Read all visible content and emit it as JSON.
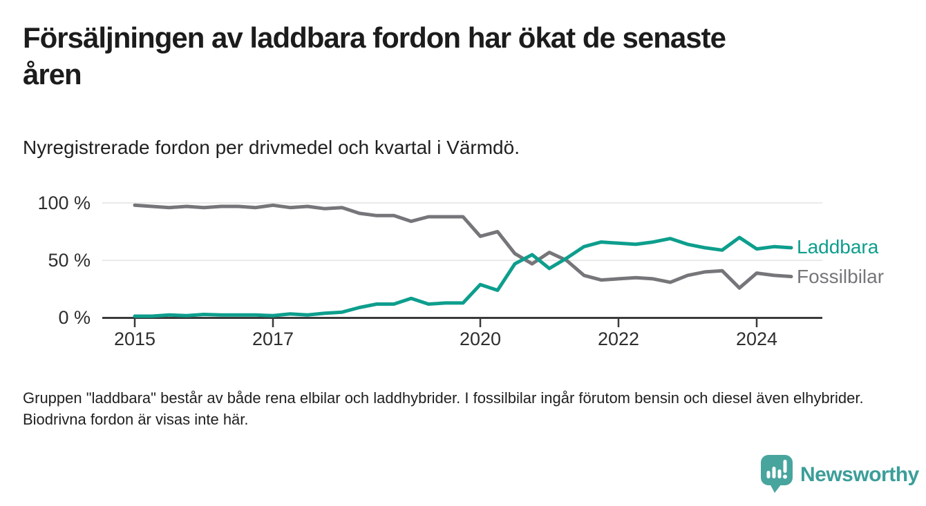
{
  "header": {
    "title_line1": "Försäljningen av laddbara fordon har ökat de senaste",
    "title_line2": "åren",
    "subtitle": "Nyregistrerade fordon per drivmedel och kvartal i Värmdö."
  },
  "chart_data": {
    "type": "line",
    "title": "Försäljningen av laddbara fordon har ökat de senaste åren",
    "subtitle": "Nyregistrerade fordon per drivmedel och kvartal i Värmdö.",
    "unit": "%",
    "ylim": [
      0,
      100
    ],
    "grid": "horizontal",
    "legend_position": "right-of-line-ends",
    "y_tick_labels": [
      "100 %",
      "50 %",
      "0 %"
    ],
    "y_tick_values": [
      100,
      50,
      0
    ],
    "x_tick_labels": [
      "2015",
      "2017",
      "2020",
      "2022",
      "2024"
    ],
    "x": [
      "2015 Q1",
      "2015 Q2",
      "2015 Q3",
      "2015 Q4",
      "2016 Q1",
      "2016 Q2",
      "2016 Q3",
      "2016 Q4",
      "2017 Q1",
      "2017 Q2",
      "2017 Q3",
      "2017 Q4",
      "2018 Q1",
      "2018 Q2",
      "2018 Q3",
      "2018 Q4",
      "2019 Q1",
      "2019 Q2",
      "2019 Q3",
      "2019 Q4",
      "2020 Q1",
      "2020 Q2",
      "2020 Q3",
      "2020 Q4",
      "2021 Q1",
      "2021 Q2",
      "2021 Q3",
      "2021 Q4",
      "2022 Q1",
      "2022 Q2",
      "2022 Q3",
      "2022 Q4",
      "2023 Q1",
      "2023 Q2",
      "2023 Q3",
      "2023 Q4",
      "2024 Q1",
      "2024 Q2",
      "2024 Q3"
    ],
    "series": [
      {
        "name": "Fossilbilar",
        "color": "#76767a",
        "values": [
          98,
          97,
          96,
          97,
          96,
          97,
          97,
          96,
          98,
          96,
          97,
          95,
          96,
          91,
          89,
          89,
          84,
          88,
          88,
          88,
          71,
          75,
          56,
          47,
          57,
          50,
          37,
          33,
          34,
          35,
          34,
          31,
          37,
          40,
          41,
          26,
          39,
          37,
          36
        ]
      },
      {
        "name": "Laddbara",
        "color": "#0d9e8d",
        "values": [
          1.5,
          1.5,
          2.5,
          2,
          3,
          2.5,
          2.5,
          2.5,
          2,
          3.5,
          2.5,
          4,
          5,
          9,
          12,
          12,
          17,
          12,
          13,
          13,
          29,
          24,
          47,
          55,
          43,
          52,
          62,
          66,
          65,
          64,
          66,
          69,
          64,
          61,
          59,
          70,
          60,
          62,
          61
        ]
      }
    ]
  },
  "footer": {
    "note": "Gruppen \"laddbara\" består av både rena elbilar och laddhybrider. I fossilbilar ingår förutom bensin och diesel även elhybrider. Biodrivna fordon är visas inte här.",
    "brand": "Newsworthy"
  },
  "colors": {
    "accent_teal": "#0d9e8d",
    "line_gray": "#76767a",
    "gridline": "#e3e3e3",
    "axis": "#3a3a3a",
    "logo_teal": "#48a59e",
    "logo_wordmark_teal": "#3b9e99"
  }
}
